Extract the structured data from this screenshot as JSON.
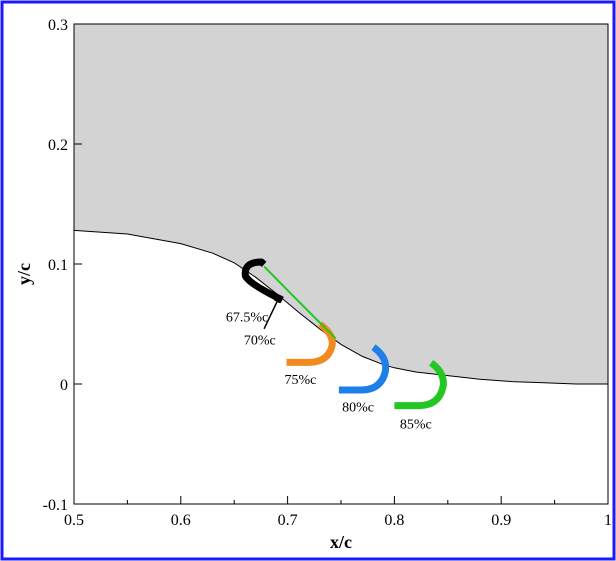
{
  "chart_data": {
    "type": "line",
    "xlabel": "x/c",
    "ylabel": "y/c",
    "xlim": [
      0.5,
      1.0
    ],
    "ylim": [
      -0.1,
      0.3
    ],
    "x_ticks": [
      "0.5",
      "0.6",
      "0.7",
      "0.8",
      "0.9",
      "1"
    ],
    "x_tick_values": [
      0.5,
      0.6,
      0.7,
      0.8,
      0.9,
      1.0
    ],
    "y_ticks": [
      "-0.1",
      "0",
      "0.1",
      "0.2",
      "0.3"
    ],
    "y_tick_values": [
      -0.1,
      0.0,
      0.1,
      0.2,
      0.3
    ],
    "grid": false,
    "airfoil_fill_color": "#d3d3d3",
    "frame_color": "#1a1aff",
    "airfoil_surface": {
      "x": [
        0.5,
        0.55,
        0.6,
        0.63,
        0.65,
        0.67,
        0.69,
        0.71,
        0.73,
        0.75,
        0.77,
        0.79,
        0.8,
        0.82,
        0.85,
        0.88,
        0.91,
        0.94,
        0.97,
        1.0
      ],
      "y": [
        0.128,
        0.125,
        0.117,
        0.109,
        0.101,
        0.089,
        0.075,
        0.06,
        0.046,
        0.033,
        0.023,
        0.016,
        0.0135,
        0.01,
        0.007,
        0.004,
        0.002,
        0.001,
        0.0,
        0.0
      ]
    },
    "flaps": [
      {
        "name": "67.5%c",
        "color": "#000000",
        "label_x": 0.662,
        "label_y": 0.052,
        "hinge_x": 0.678,
        "hinge_y": 0.098,
        "tip_x": 0.695,
        "tip_y": 0.07,
        "tip_dx": 0,
        "tip_dy": 0,
        "radius": 0.008
      },
      {
        "name": "75%c",
        "color": "#f28a1e",
        "label_x": 0.712,
        "label_y": 0.0,
        "hinge_x": 0.736,
        "hinge_y": 0.043,
        "tip_x": 0.699,
        "tip_y": 0.018,
        "radius": 0.011
      },
      {
        "name": "80%c",
        "color": "#1f7fe8",
        "label_x": 0.766,
        "label_y": -0.023,
        "hinge_x": 0.786,
        "hinge_y": 0.024,
        "tip_x": 0.748,
        "tip_y": -0.005,
        "radius": 0.011
      },
      {
        "name": "85%c",
        "color": "#22c722",
        "label_x": 0.82,
        "label_y": -0.037,
        "hinge_x": 0.84,
        "hinge_y": 0.011,
        "tip_x": 0.8,
        "tip_y": -0.018,
        "radius": 0.011
      }
    ],
    "annotations": [
      {
        "text": "70%c",
        "x": 0.674,
        "y": 0.033,
        "arrow_to_x": 0.693,
        "arrow_to_y": 0.074,
        "arrow_from_x": 0.678,
        "arrow_from_y": 0.046
      }
    ]
  }
}
